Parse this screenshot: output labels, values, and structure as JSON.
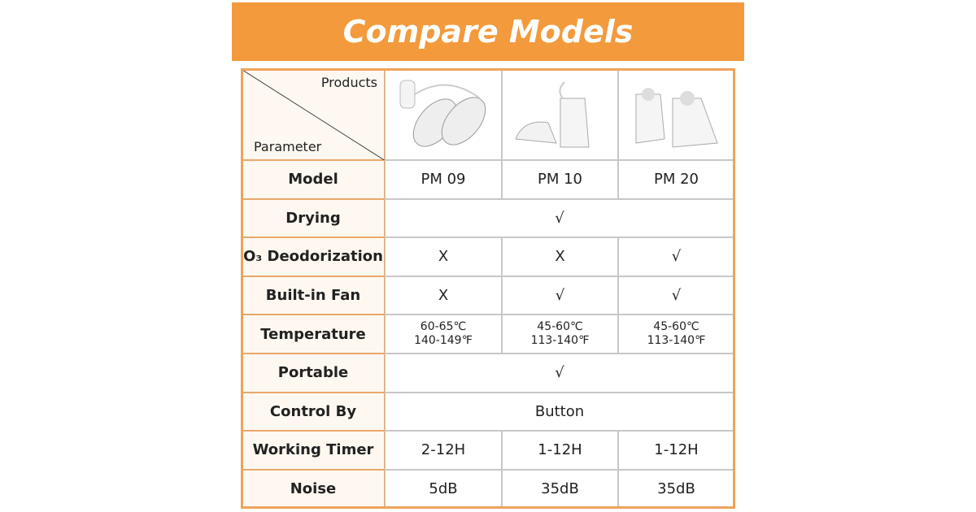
{
  "header": {
    "title": "Compare Models"
  },
  "table": {
    "corner": {
      "top": "Products",
      "bottom": "Parameter"
    },
    "rows": [
      {
        "label": "Model",
        "cells": [
          "PM 09",
          "PM 10",
          "PM 20"
        ]
      },
      {
        "label": "Drying",
        "cells": [
          "√"
        ]
      },
      {
        "label": "O₃ Deodorization",
        "cells": [
          "X",
          "X",
          "√"
        ]
      },
      {
        "label": "Built-in Fan",
        "cells": [
          "X",
          "√",
          "√"
        ]
      },
      {
        "label": "Temperature",
        "cells": [
          [
            "60-65℃",
            "140-149℉"
          ],
          [
            "45-60℃",
            "113-140℉"
          ],
          [
            "45-60℃",
            "113-140℉"
          ]
        ]
      },
      {
        "label": "Portable",
        "cells": [
          "√"
        ]
      },
      {
        "label": "Control By",
        "cells": [
          "Button"
        ]
      },
      {
        "label": "Working Timer",
        "cells": [
          "2-12H",
          "1-12H",
          "1-12H"
        ]
      },
      {
        "label": "Noise",
        "cells": [
          "5dB",
          "35dB",
          "35dB"
        ]
      }
    ]
  }
}
